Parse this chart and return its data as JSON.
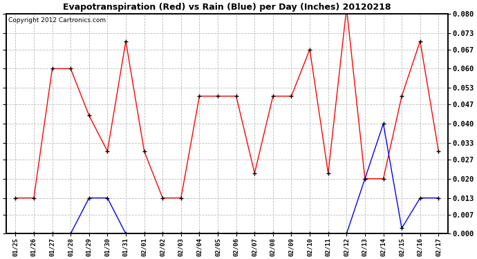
{
  "title": "Evapotranspiration (Red) vs Rain (Blue) per Day (Inches) 20120218",
  "copyright": "Copyright 2012 Cartronics.com",
  "dates": [
    "01/25",
    "01/26",
    "01/27",
    "01/28",
    "01/29",
    "01/30",
    "01/31",
    "02/01",
    "02/02",
    "02/03",
    "02/04",
    "02/05",
    "02/06",
    "02/07",
    "02/08",
    "02/09",
    "02/10",
    "02/11",
    "02/12",
    "02/13",
    "02/14",
    "02/15",
    "02/16",
    "02/17"
  ],
  "et_red": [
    0.013,
    0.013,
    0.06,
    0.06,
    0.043,
    0.03,
    0.07,
    0.03,
    0.013,
    0.013,
    0.05,
    0.05,
    0.05,
    0.022,
    0.05,
    0.05,
    0.067,
    0.022,
    0.082,
    0.02,
    0.02,
    0.05,
    0.07,
    0.03
  ],
  "rain_blue": [
    0.0,
    0.0,
    0.0,
    0.0,
    0.013,
    0.013,
    0.0,
    0.0,
    0.0,
    0.0,
    0.0,
    0.0,
    0.0,
    0.0,
    0.0,
    0.0,
    0.0,
    0.0,
    0.0,
    0.02,
    0.04,
    0.002,
    0.013,
    0.013
  ],
  "ylim": [
    0.0,
    0.08
  ],
  "yticks": [
    0.0,
    0.007,
    0.013,
    0.02,
    0.027,
    0.033,
    0.04,
    0.047,
    0.053,
    0.06,
    0.067,
    0.073,
    0.08
  ],
  "bg_color": "#ffffff",
  "grid_color": "#bbbbbb"
}
